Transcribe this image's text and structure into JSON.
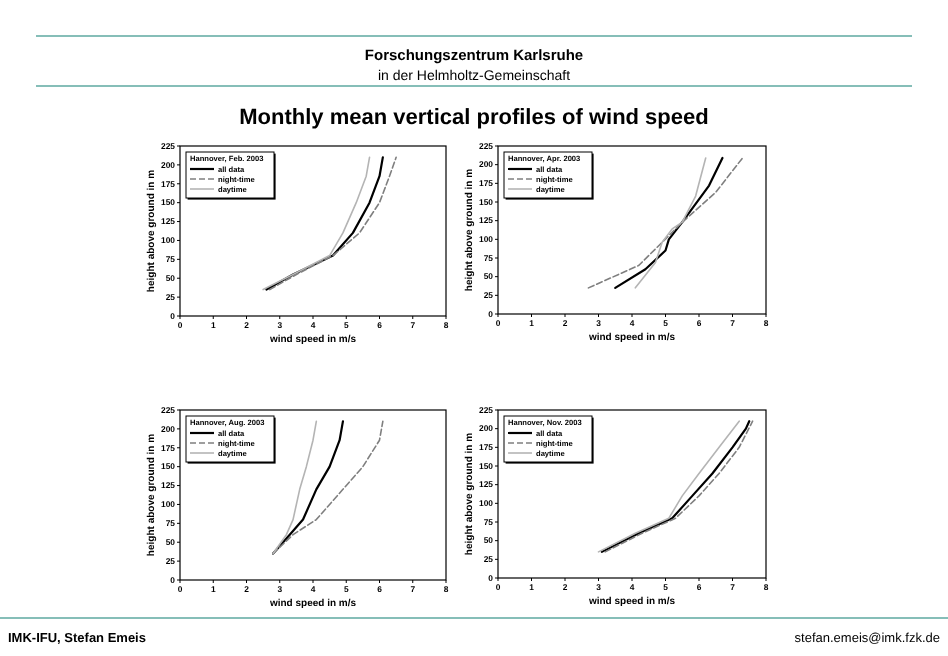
{
  "chart_data": [
    {
      "type": "line",
      "title": "Monthly mean vertical profiles of wind speed",
      "annotations": [
        "Forschungszentrum Karlsruhe",
        "in der Helmholtz-Gemeinschaft"
      ],
      "legend_title": "Hannover, Feb. 2003",
      "xlabel": "wind speed in m/s",
      "ylabel": "height above ground in m",
      "xlim": [
        0,
        8
      ],
      "xticks": [
        0,
        1,
        2,
        3,
        4,
        5,
        6,
        7,
        8
      ],
      "ylim": [
        0,
        225
      ],
      "yticks": [
        0,
        25,
        50,
        75,
        100,
        125,
        150,
        175,
        200,
        225
      ],
      "legend": "top left",
      "grid": false,
      "marker": "none",
      "series": [
        {
          "name": "all data",
          "color": "#000000",
          "line_style": "solid",
          "x": [
            2.6,
            3.4,
            4.6,
            5.2,
            5.7,
            6.0,
            6.1
          ],
          "values": [
            35,
            55,
            80,
            110,
            150,
            185,
            210
          ]
        },
        {
          "name": "night-time",
          "color": "#7f7f7f",
          "line_style": "dashed",
          "x": [
            2.7,
            3.5,
            4.6,
            5.4,
            6.0,
            6.3,
            6.5
          ],
          "values": [
            35,
            55,
            80,
            110,
            150,
            185,
            210
          ]
        },
        {
          "name": "daytime",
          "color": "#b4b4b4",
          "line_style": "solid",
          "x": [
            2.5,
            3.4,
            4.5,
            4.9,
            5.3,
            5.6,
            5.7
          ],
          "values": [
            35,
            55,
            80,
            110,
            150,
            185,
            210
          ]
        }
      ]
    },
    {
      "type": "line",
      "legend_title": "Hannover, Apr. 2003",
      "xlabel": "wind speed in m/s",
      "ylabel": "height above ground in m",
      "xlim": [
        0,
        8
      ],
      "xticks": [
        0,
        1,
        2,
        3,
        4,
        5,
        6,
        7,
        8
      ],
      "ylim": [
        0,
        225
      ],
      "yticks": [
        0,
        25,
        50,
        75,
        100,
        125,
        150,
        175,
        200,
        225
      ],
      "legend": "top left",
      "grid": false,
      "marker": "none",
      "series": [
        {
          "name": "all data",
          "color": "#000000",
          "line_style": "solid",
          "x": [
            3.5,
            4.4,
            5.0,
            5.1,
            5.5,
            6.3,
            6.7
          ],
          "values": [
            35,
            60,
            85,
            100,
            123,
            172,
            209
          ]
        },
        {
          "name": "night-time",
          "color": "#7f7f7f",
          "line_style": "dashed",
          "x": [
            2.7,
            4.2,
            4.9,
            5.5,
            6.5,
            7.3
          ],
          "values": [
            35,
            65,
            96,
            123,
            163,
            209
          ]
        },
        {
          "name": "daytime",
          "color": "#b4b4b4",
          "line_style": "solid",
          "x": [
            4.1,
            4.7,
            4.9,
            5.2,
            5.5,
            5.9,
            6.2
          ],
          "values": [
            35,
            69,
            96,
            114,
            123,
            158,
            209
          ]
        }
      ]
    },
    {
      "type": "line",
      "legend_title": "Hannover, Aug. 2003",
      "xlabel": "wind speed in m/s",
      "ylabel": "height above ground in m",
      "xlim": [
        0,
        8
      ],
      "xticks": [
        0,
        1,
        2,
        3,
        4,
        5,
        6,
        7,
        8
      ],
      "ylim": [
        0,
        225
      ],
      "yticks": [
        0,
        25,
        50,
        75,
        100,
        125,
        150,
        175,
        200,
        225
      ],
      "legend": "top left",
      "grid": false,
      "marker": "none",
      "series": [
        {
          "name": "all data",
          "color": "#000000",
          "line_style": "solid",
          "x": [
            2.8,
            3.3,
            3.7,
            4.1,
            4.5,
            4.8,
            4.9
          ],
          "values": [
            35,
            60,
            80,
            120,
            150,
            185,
            210
          ]
        },
        {
          "name": "night-time",
          "color": "#7f7f7f",
          "line_style": "dashed",
          "x": [
            2.8,
            3.4,
            4.1,
            4.9,
            5.5,
            6.0,
            6.1
          ],
          "values": [
            35,
            60,
            80,
            120,
            150,
            185,
            210
          ]
        },
        {
          "name": "daytime",
          "color": "#b4b4b4",
          "line_style": "solid",
          "x": [
            2.8,
            3.2,
            3.4,
            3.6,
            3.8,
            4.0,
            4.1
          ],
          "values": [
            35,
            60,
            80,
            120,
            150,
            185,
            210
          ]
        }
      ]
    },
    {
      "type": "line",
      "legend_title": "Hannover, Nov. 2003",
      "xlabel": "wind speed in m/s",
      "ylabel": "height above ground in m",
      "xlim": [
        0,
        8
      ],
      "xticks": [
        0,
        1,
        2,
        3,
        4,
        5,
        6,
        7,
        8
      ],
      "ylim": [
        0,
        225
      ],
      "yticks": [
        0,
        25,
        50,
        75,
        100,
        125,
        150,
        175,
        200,
        225
      ],
      "legend": "top left",
      "grid": false,
      "marker": "none",
      "annotations": [
        "IMK-IFU, Stefan Emeis",
        "stefan.emeis@imk.fzk.de"
      ],
      "series": [
        {
          "name": "all data",
          "color": "#000000",
          "line_style": "solid",
          "x": [
            3.1,
            4.2,
            5.2,
            5.8,
            6.4,
            7.0,
            7.4,
            7.5
          ],
          "values": [
            35,
            60,
            80,
            110,
            140,
            175,
            200,
            210
          ]
        },
        {
          "name": "night-time",
          "color": "#7f7f7f",
          "line_style": "dashed",
          "x": [
            3.2,
            4.3,
            5.3,
            6.0,
            6.6,
            7.2,
            7.6
          ],
          "values": [
            35,
            60,
            80,
            110,
            140,
            175,
            210
          ]
        },
        {
          "name": "daytime",
          "color": "#b4b4b4",
          "line_style": "solid",
          "x": [
            3.0,
            4.1,
            5.1,
            5.5,
            6.0,
            6.6,
            7.2
          ],
          "values": [
            35,
            60,
            80,
            110,
            140,
            175,
            210
          ]
        }
      ]
    }
  ]
}
